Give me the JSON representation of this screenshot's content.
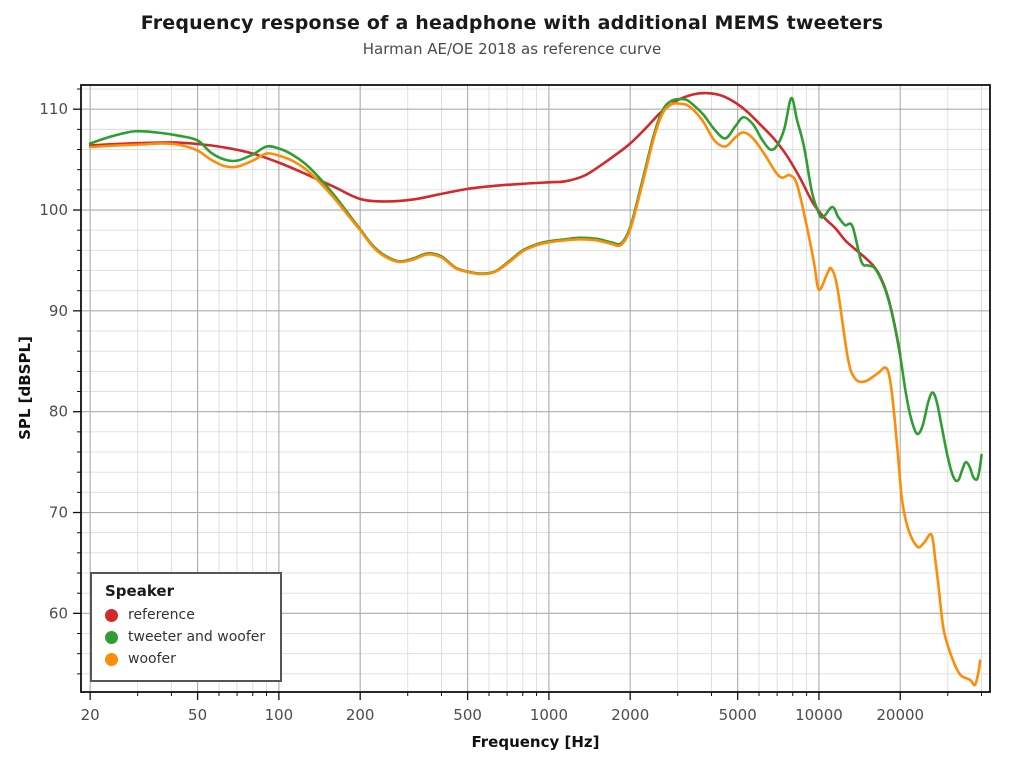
{
  "title": "Frequency response of a headphone with additional MEMS tweeters",
  "subtitle": "Harman AE/OE 2018 as reference curve",
  "legend": {
    "title": "Speaker",
    "position": "lower-left",
    "items": [
      {
        "label": "reference",
        "color": "#d2292d"
      },
      {
        "label": "tweeter and woofer",
        "color": "#2f9e32"
      },
      {
        "label": "woofer",
        "color": "#ff8c07"
      }
    ]
  },
  "colors": {
    "background": "#ffffff",
    "panel_border": "#111111",
    "grid_major": "#ababab",
    "grid_minor": "#dcdcdc",
    "tick_label": "#4d4d4d",
    "reference": "#d2292d",
    "tweeter_and_woofer": "#2f9e32",
    "woofer": "#ff8c07"
  },
  "chart_data": {
    "type": "line",
    "title": "Frequency response of a headphone with additional MEMS tweeters",
    "subtitle": "Harman AE/OE 2018 as reference curve",
    "xlabel": "Frequency [Hz]",
    "ylabel": "SPL [dBSPL]",
    "x_scale": "log",
    "grid": "major+minor",
    "legend_position": "lower-left",
    "xlim": [
      18.5,
      43000
    ],
    "ylim": [
      52.2,
      112.4
    ],
    "x_ticks_labeled": [
      20,
      50,
      100,
      200,
      500,
      1000,
      2000,
      5000,
      10000,
      20000
    ],
    "x_ticks_minor": [
      30,
      40,
      60,
      70,
      80,
      90,
      300,
      400,
      600,
      700,
      800,
      900,
      3000,
      4000,
      6000,
      7000,
      8000,
      9000,
      30000,
      40000
    ],
    "y_ticks_labeled": [
      60,
      70,
      80,
      90,
      100,
      110
    ],
    "y_minor_step": 2,
    "series": [
      {
        "name": "reference",
        "color": "#d2292d",
        "points": [
          [
            20,
            106.4
          ],
          [
            25,
            106.55
          ],
          [
            32,
            106.65
          ],
          [
            40,
            106.7
          ],
          [
            50,
            106.55
          ],
          [
            63,
            106.2
          ],
          [
            80,
            105.6
          ],
          [
            100,
            104.7
          ],
          [
            125,
            103.6
          ],
          [
            160,
            102.3
          ],
          [
            200,
            101.1
          ],
          [
            250,
            100.85
          ],
          [
            315,
            101.05
          ],
          [
            400,
            101.6
          ],
          [
            500,
            102.1
          ],
          [
            630,
            102.4
          ],
          [
            800,
            102.6
          ],
          [
            1000,
            102.75
          ],
          [
            1150,
            102.85
          ],
          [
            1350,
            103.4
          ],
          [
            1550,
            104.4
          ],
          [
            1750,
            105.4
          ],
          [
            2000,
            106.6
          ],
          [
            2300,
            108.2
          ],
          [
            2600,
            109.7
          ],
          [
            3000,
            110.9
          ],
          [
            3400,
            111.45
          ],
          [
            3800,
            111.6
          ],
          [
            4300,
            111.4
          ],
          [
            4800,
            110.8
          ],
          [
            5400,
            109.8
          ],
          [
            6000,
            108.6
          ],
          [
            6800,
            107.1
          ],
          [
            7600,
            105.4
          ],
          [
            8500,
            103.2
          ],
          [
            9500,
            100.7
          ],
          [
            10500,
            99.2
          ],
          [
            11500,
            98.2
          ],
          [
            12500,
            97.0
          ],
          [
            13500,
            96.2
          ],
          [
            14500,
            95.5
          ],
          [
            16000,
            94.4
          ],
          [
            17000,
            93.2
          ],
          [
            18000,
            91.4
          ],
          [
            19000,
            88.8
          ],
          [
            20000,
            85.7
          ]
        ]
      },
      {
        "name": "tweeter and woofer",
        "color": "#2f9e32",
        "points": [
          [
            20,
            106.6
          ],
          [
            24,
            107.3
          ],
          [
            29,
            107.8
          ],
          [
            35,
            107.7
          ],
          [
            43,
            107.35
          ],
          [
            50,
            106.9
          ],
          [
            56,
            105.7
          ],
          [
            63,
            105.0
          ],
          [
            70,
            104.9
          ],
          [
            80,
            105.5
          ],
          [
            90,
            106.3
          ],
          [
            100,
            106.1
          ],
          [
            112,
            105.5
          ],
          [
            125,
            104.6
          ],
          [
            140,
            103.3
          ],
          [
            160,
            101.5
          ],
          [
            180,
            99.7
          ],
          [
            200,
            98.1
          ],
          [
            224,
            96.4
          ],
          [
            250,
            95.4
          ],
          [
            280,
            94.9
          ],
          [
            315,
            95.2
          ],
          [
            355,
            95.7
          ],
          [
            400,
            95.4
          ],
          [
            450,
            94.3
          ],
          [
            500,
            93.9
          ],
          [
            560,
            93.7
          ],
          [
            630,
            93.9
          ],
          [
            710,
            94.9
          ],
          [
            800,
            96.0
          ],
          [
            900,
            96.6
          ],
          [
            1000,
            96.9
          ],
          [
            1150,
            97.1
          ],
          [
            1300,
            97.25
          ],
          [
            1500,
            97.15
          ],
          [
            1700,
            96.8
          ],
          [
            1850,
            96.7
          ],
          [
            2000,
            98.3
          ],
          [
            2200,
            102.5
          ],
          [
            2450,
            107.5
          ],
          [
            2650,
            110.0
          ],
          [
            2850,
            110.85
          ],
          [
            3050,
            111.0
          ],
          [
            3250,
            110.9
          ],
          [
            3500,
            110.2
          ],
          [
            3750,
            109.4
          ],
          [
            4100,
            108.0
          ],
          [
            4500,
            107.1
          ],
          [
            4900,
            108.3
          ],
          [
            5250,
            109.2
          ],
          [
            5700,
            108.5
          ],
          [
            6150,
            107.0
          ],
          [
            6600,
            106.0
          ],
          [
            7000,
            106.4
          ],
          [
            7450,
            108.1
          ],
          [
            7900,
            111.1
          ],
          [
            8300,
            108.9
          ],
          [
            8800,
            106.3
          ],
          [
            9400,
            101.9
          ],
          [
            9850,
            100.1
          ],
          [
            10300,
            99.25
          ],
          [
            11200,
            100.3
          ],
          [
            11800,
            99.3
          ],
          [
            12500,
            98.5
          ],
          [
            13300,
            98.4
          ],
          [
            14350,
            94.9
          ],
          [
            15200,
            94.5
          ],
          [
            16000,
            94.3
          ],
          [
            17000,
            93.1
          ],
          [
            18000,
            91.3
          ],
          [
            19000,
            88.7
          ],
          [
            20000,
            85.5
          ],
          [
            21000,
            81.8
          ],
          [
            22000,
            79.2
          ],
          [
            23100,
            77.8
          ],
          [
            24200,
            78.6
          ],
          [
            25300,
            80.8
          ],
          [
            26300,
            81.9
          ],
          [
            27300,
            81.0
          ],
          [
            28500,
            78.5
          ],
          [
            30000,
            75.5
          ],
          [
            31500,
            73.5
          ],
          [
            32800,
            73.2
          ],
          [
            34000,
            74.3
          ],
          [
            35000,
            75.0
          ],
          [
            36200,
            74.5
          ],
          [
            37300,
            73.5
          ],
          [
            38500,
            73.3
          ],
          [
            39300,
            74.2
          ],
          [
            40000,
            75.7
          ]
        ]
      },
      {
        "name": "woofer",
        "color": "#ff8c07",
        "points": [
          [
            20,
            106.25
          ],
          [
            25,
            106.4
          ],
          [
            31,
            106.5
          ],
          [
            37,
            106.6
          ],
          [
            43,
            106.45
          ],
          [
            50,
            105.9
          ],
          [
            56,
            105.0
          ],
          [
            63,
            104.35
          ],
          [
            70,
            104.3
          ],
          [
            80,
            104.9
          ],
          [
            90,
            105.6
          ],
          [
            100,
            105.4
          ],
          [
            112,
            104.9
          ],
          [
            125,
            104.1
          ],
          [
            140,
            102.9
          ],
          [
            160,
            101.2
          ],
          [
            180,
            99.5
          ],
          [
            200,
            98.0
          ],
          [
            224,
            96.3
          ],
          [
            250,
            95.3
          ],
          [
            280,
            94.85
          ],
          [
            315,
            95.1
          ],
          [
            355,
            95.6
          ],
          [
            400,
            95.3
          ],
          [
            450,
            94.25
          ],
          [
            500,
            93.85
          ],
          [
            560,
            93.65
          ],
          [
            630,
            93.85
          ],
          [
            710,
            94.8
          ],
          [
            800,
            95.9
          ],
          [
            900,
            96.5
          ],
          [
            1000,
            96.8
          ],
          [
            1150,
            97.0
          ],
          [
            1300,
            97.1
          ],
          [
            1500,
            97.0
          ],
          [
            1700,
            96.65
          ],
          [
            1850,
            96.55
          ],
          [
            2000,
            98.1
          ],
          [
            2200,
            102.2
          ],
          [
            2450,
            107.2
          ],
          [
            2650,
            109.7
          ],
          [
            2850,
            110.5
          ],
          [
            3050,
            110.55
          ],
          [
            3300,
            110.3
          ],
          [
            3700,
            108.9
          ],
          [
            4100,
            106.9
          ],
          [
            4500,
            106.3
          ],
          [
            4900,
            107.2
          ],
          [
            5250,
            107.7
          ],
          [
            5700,
            107.1
          ],
          [
            6300,
            105.5
          ],
          [
            6900,
            103.8
          ],
          [
            7300,
            103.2
          ],
          [
            7800,
            103.45
          ],
          [
            8300,
            102.5
          ],
          [
            9000,
            98.5
          ],
          [
            9600,
            94.7
          ],
          [
            10000,
            92.1
          ],
          [
            10700,
            93.6
          ],
          [
            11100,
            94.2
          ],
          [
            11700,
            92.3
          ],
          [
            12800,
            85.3
          ],
          [
            13600,
            83.3
          ],
          [
            14800,
            83.0
          ],
          [
            16500,
            83.8
          ],
          [
            17800,
            84.3
          ],
          [
            18600,
            82.0
          ],
          [
            19500,
            76.5
          ],
          [
            20300,
            71.3
          ],
          [
            21500,
            68.2
          ],
          [
            23200,
            66.6
          ],
          [
            24500,
            67.0
          ],
          [
            26100,
            67.8
          ],
          [
            27000,
            65.2
          ],
          [
            27700,
            62.8
          ],
          [
            29000,
            58.3
          ],
          [
            31300,
            55.4
          ],
          [
            33400,
            53.9
          ],
          [
            36300,
            53.4
          ],
          [
            37800,
            52.9
          ],
          [
            39000,
            54.2
          ],
          [
            39500,
            55.3
          ]
        ]
      }
    ]
  }
}
